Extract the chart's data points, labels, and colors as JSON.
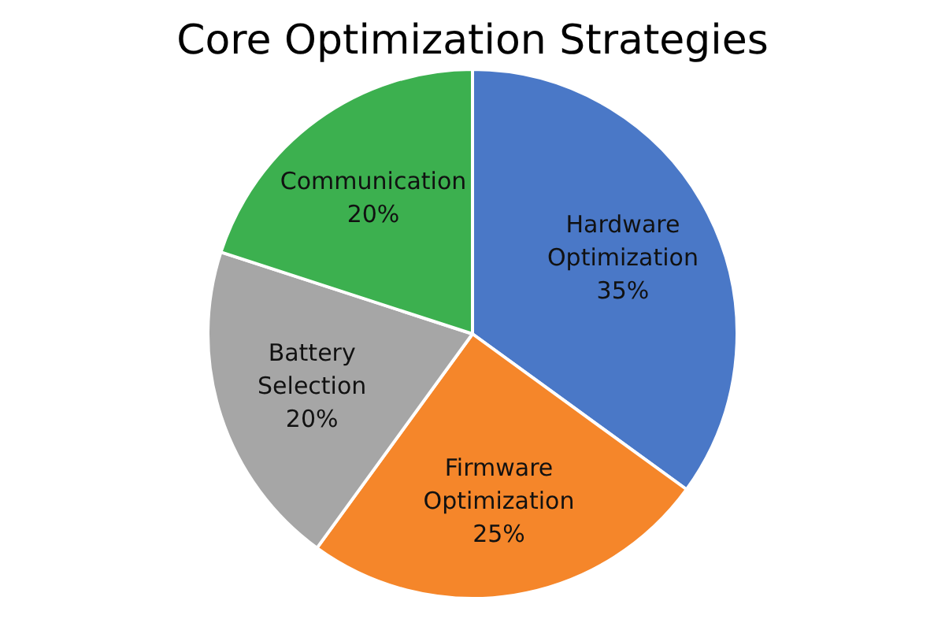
{
  "chart_data": {
    "type": "pie",
    "title": "Core Optimization Strategies",
    "categories": [
      "Hardware Optimization",
      "Firmware Optimization",
      "Battery Selection",
      "Communication"
    ],
    "values": [
      35,
      25,
      20,
      20
    ],
    "value_labels": [
      "35%",
      "25%",
      "20%",
      "20%"
    ],
    "colors": [
      "#4a78c7",
      "#f5862a",
      "#a6a6a6",
      "#3cb04f"
    ],
    "legend": false
  }
}
